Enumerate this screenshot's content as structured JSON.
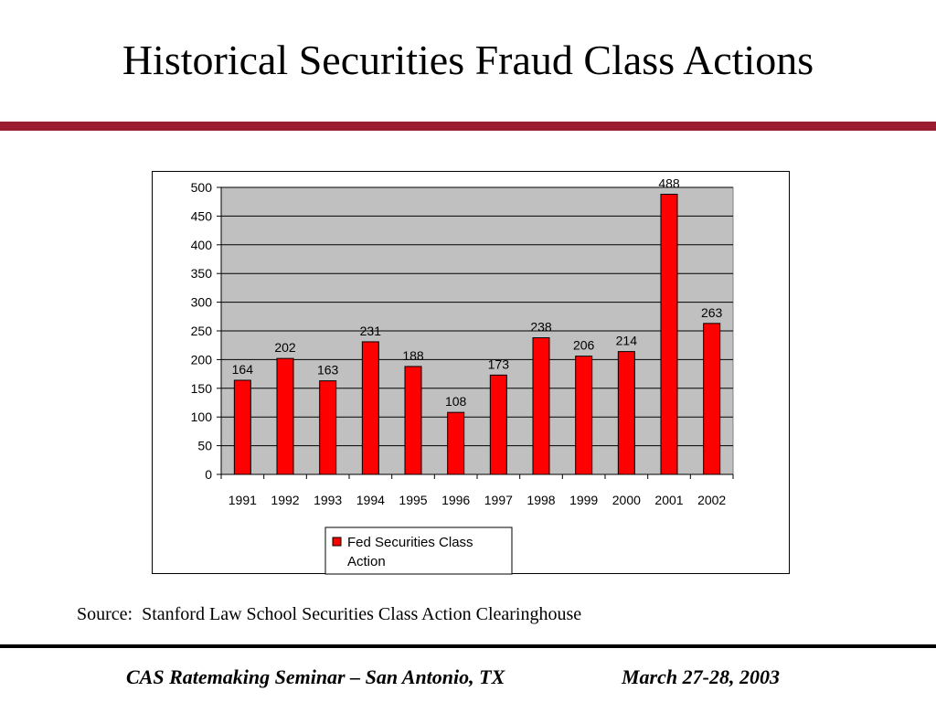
{
  "slide": {
    "title": "Historical Securities Fraud Class Actions",
    "source": "Source:  Stanford Law School Securities Class Action Clearinghouse",
    "footer_left": "CAS Ratemaking Seminar – San Antonio, TX",
    "footer_right": "March 27-28, 2003",
    "accent_color": "#9b1b30"
  },
  "chart_data": {
    "type": "bar",
    "categories": [
      "1991",
      "1992",
      "1993",
      "1994",
      "1995",
      "1996",
      "1997",
      "1998",
      "1999",
      "2000",
      "2001",
      "2002"
    ],
    "series": [
      {
        "name": "Fed Securities Class Action",
        "values": [
          164,
          202,
          163,
          231,
          188,
          108,
          173,
          238,
          206,
          214,
          488,
          263
        ],
        "color": "#ff0000"
      }
    ],
    "title": "",
    "xlabel": "",
    "ylabel": "",
    "ylim": [
      0,
      500
    ],
    "yticks": [
      0,
      50,
      100,
      150,
      200,
      250,
      300,
      350,
      400,
      450,
      500
    ],
    "grid": true,
    "plot_background": "#c0c0c0",
    "legend_position": "bottom",
    "data_labels": true
  }
}
